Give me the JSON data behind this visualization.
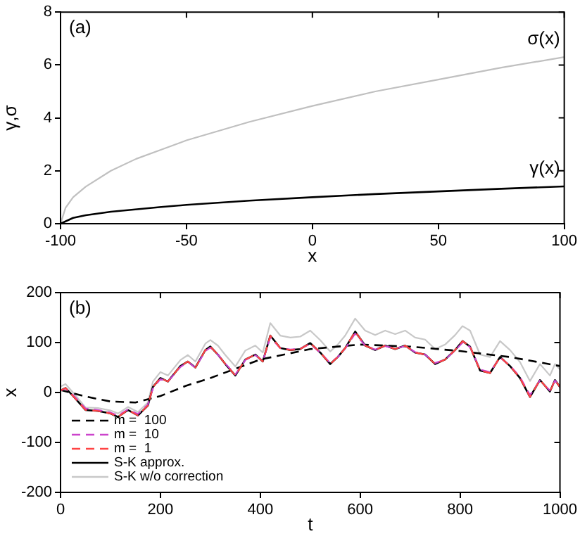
{
  "chart_data": [
    {
      "type": "line",
      "xlabel": "x",
      "ylabel": "γ,σ",
      "annotations": [
        "(a)"
      ],
      "xlim": [
        -100,
        100
      ],
      "xticks": [
        -100,
        -50,
        0,
        50,
        100
      ],
      "ylim": [
        0,
        8
      ],
      "yticks": [
        0,
        2,
        4,
        6,
        8
      ],
      "grid": false,
      "legend": "right",
      "marker": "none",
      "series": [
        {
          "name": "σ(x)",
          "color": "#c0c0c0",
          "x": [
            -100,
            -98,
            -95,
            -90,
            -80,
            -70,
            -60,
            -50,
            -25,
            0,
            25,
            50,
            75,
            100
          ],
          "values": [
            0,
            0.6,
            1.0,
            1.4,
            2.0,
            2.45,
            2.8,
            3.15,
            3.85,
            4.45,
            5.0,
            5.45,
            5.9,
            6.3
          ]
        },
        {
          "name": "γ(x)",
          "color": "#000000",
          "x": [
            -100,
            -95,
            -90,
            -80,
            -60,
            -50,
            -25,
            0,
            25,
            50,
            75,
            100
          ],
          "values": [
            0,
            0.22,
            0.32,
            0.45,
            0.63,
            0.71,
            0.87,
            1.0,
            1.12,
            1.22,
            1.32,
            1.41
          ]
        }
      ]
    },
    {
      "type": "line",
      "xlabel": "t",
      "ylabel": "x",
      "annotations": [
        "(b)"
      ],
      "xlim": [
        0,
        1000
      ],
      "xticks": [
        0,
        200,
        400,
        600,
        800,
        1000
      ],
      "ylim": [
        -200,
        200
      ],
      "yticks": [
        -200,
        -100,
        0,
        100,
        200
      ],
      "grid": false,
      "legend": "bottom left",
      "marker": "none",
      "series": [
        {
          "name": "m =  100",
          "color": "#000000",
          "line_style": "dashed",
          "x": [
            0,
            50,
            100,
            150,
            200,
            250,
            300,
            400,
            500,
            600,
            700,
            800,
            900,
            1000
          ],
          "values": [
            5,
            -8,
            -18,
            -20,
            -7,
            13,
            29,
            66,
            87,
            96,
            92,
            83,
            71,
            53
          ]
        },
        {
          "name": "m =  10",
          "color": "#cc44cc",
          "line_style": "dashed",
          "x": [
            0,
            10,
            25,
            50,
            75,
            100,
            115,
            135,
            155,
            175,
            185,
            200,
            215,
            240,
            255,
            270,
            290,
            300,
            315,
            330,
            350,
            370,
            390,
            405,
            420,
            440,
            460,
            480,
            500,
            520,
            540,
            555,
            570,
            590,
            610,
            630,
            650,
            670,
            690,
            710,
            730,
            750,
            770,
            790,
            805,
            820,
            840,
            860,
            880,
            900,
            920,
            940,
            960,
            980,
            990,
            1000
          ],
          "values": [
            4,
            8,
            -5,
            -32,
            -35,
            -40,
            -46,
            -34,
            -43,
            -24,
            8,
            27,
            22,
            51,
            61,
            50,
            83,
            90,
            76,
            58,
            36,
            65,
            75,
            63,
            110,
            89,
            86,
            88,
            97,
            80,
            59,
            71,
            88,
            118,
            94,
            86,
            93,
            88,
            93,
            81,
            76,
            59,
            66,
            84,
            100,
            91,
            46,
            41,
            70,
            54,
            31,
            -5,
            24,
            4,
            24,
            12
          ]
        },
        {
          "name": "m =  1",
          "color": "#ff4444",
          "line_style": "dashed",
          "x": [
            0,
            10,
            25,
            50,
            75,
            100,
            115,
            135,
            155,
            175,
            185,
            200,
            215,
            240,
            255,
            270,
            290,
            300,
            315,
            330,
            350,
            370,
            390,
            405,
            420,
            440,
            460,
            480,
            500,
            520,
            540,
            555,
            570,
            590,
            610,
            630,
            650,
            670,
            690,
            710,
            730,
            750,
            770,
            790,
            805,
            820,
            840,
            860,
            880,
            900,
            920,
            940,
            960,
            980,
            990,
            1000
          ],
          "values": [
            4,
            9,
            -7,
            -35,
            -37,
            -42,
            -49,
            -35,
            -46,
            -26,
            11,
            29,
            22,
            53,
            62,
            50,
            85,
            92,
            76,
            57,
            34,
            66,
            76,
            62,
            114,
            89,
            85,
            87,
            99,
            80,
            57,
            71,
            89,
            122,
            94,
            85,
            94,
            87,
            94,
            80,
            76,
            57,
            66,
            85,
            103,
            92,
            44,
            39,
            71,
            53,
            29,
            -9,
            25,
            2,
            25,
            11
          ]
        },
        {
          "name": "S-K approx.",
          "color": "#000000",
          "line_style": "solid",
          "x": [
            0,
            10,
            25,
            50,
            75,
            100,
            115,
            135,
            155,
            175,
            185,
            200,
            215,
            240,
            255,
            270,
            290,
            300,
            315,
            330,
            350,
            370,
            390,
            405,
            420,
            440,
            460,
            480,
            500,
            520,
            540,
            555,
            570,
            590,
            610,
            630,
            650,
            670,
            690,
            710,
            730,
            750,
            770,
            790,
            805,
            820,
            840,
            860,
            880,
            900,
            920,
            940,
            960,
            980,
            990,
            1000
          ],
          "values": [
            4,
            9,
            -7,
            -35,
            -37,
            -42,
            -49,
            -35,
            -46,
            -26,
            11,
            29,
            22,
            53,
            62,
            50,
            85,
            92,
            76,
            57,
            34,
            66,
            76,
            62,
            114,
            89,
            85,
            87,
            99,
            80,
            57,
            71,
            89,
            122,
            94,
            85,
            94,
            87,
            94,
            80,
            76,
            57,
            66,
            85,
            103,
            92,
            44,
            39,
            71,
            53,
            29,
            -9,
            25,
            2,
            25,
            11
          ]
        },
        {
          "name": "S-K w/o correction",
          "color": "#c8c8c8",
          "line_style": "solid",
          "x": [
            0,
            10,
            25,
            50,
            75,
            100,
            115,
            135,
            155,
            175,
            185,
            200,
            215,
            240,
            255,
            270,
            290,
            300,
            315,
            330,
            350,
            370,
            390,
            405,
            420,
            440,
            460,
            480,
            500,
            520,
            540,
            555,
            570,
            590,
            610,
            630,
            650,
            670,
            690,
            710,
            730,
            750,
            770,
            790,
            805,
            820,
            840,
            860,
            880,
            900,
            920,
            940,
            960,
            980,
            990,
            1000
          ],
          "values": [
            12,
            17,
            0,
            -30,
            -31,
            -36,
            -42,
            -29,
            -39,
            -20,
            22,
            41,
            34,
            65,
            75,
            62,
            98,
            105,
            94,
            75,
            52,
            84,
            94,
            80,
            139,
            114,
            110,
            112,
            124,
            105,
            82,
            96,
            114,
            148,
            124,
            115,
            124,
            117,
            124,
            110,
            106,
            87,
            96,
            115,
            133,
            124,
            76,
            71,
            103,
            85,
            61,
            23,
            57,
            34,
            57,
            46
          ]
        }
      ]
    }
  ]
}
